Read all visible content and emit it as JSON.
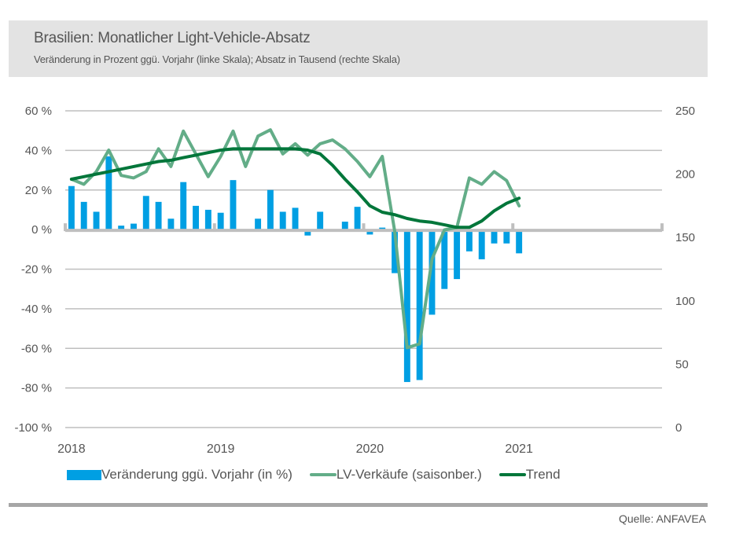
{
  "header": {
    "title": "Brasilien: Monatlicher Light-Vehicle-Absatz",
    "subtitle": "Veränderung in Prozent ggü. Vorjahr (linke Skala); Absatz in Tausend (rechte Skala)"
  },
  "colors": {
    "bars": "#009fe3",
    "lv_line": "#63ad88",
    "trend_line": "#00763a",
    "grid": "#bfbfbf",
    "zero_axis": "#bfbfbf",
    "text": "#555555",
    "title_bg": "#e3e3e3"
  },
  "legend": {
    "bars_label": "Veränderung ggü. Vorjahr (in %)",
    "lv_label": "LV-Verkäufe (saisonber.)",
    "trend_label": "Trend"
  },
  "footer": {
    "source": "Quelle: ANFAVEA"
  },
  "chart_data": {
    "type": "bar+line",
    "title": "Brasilien: Monatlicher Light-Vehicle-Absatz",
    "subtitle": "Veränderung in Prozent ggü. Vorjahr (linke Skala); Absatz in Tausend (rechte Skala)",
    "x_start": "2018-01",
    "x_end": "2021-12",
    "x_tick_labels": [
      "2018",
      "2019",
      "2020",
      "2021"
    ],
    "y_left": {
      "range": [
        -100,
        60
      ],
      "ticks": [
        60,
        40,
        20,
        0,
        -20,
        -40,
        -60,
        -80,
        -100
      ],
      "tick_labels": [
        "60 %",
        "40 %",
        "20 %",
        "0 %",
        "-20 %",
        "-40 %",
        "-60 %",
        "-80 %",
        "-100 %"
      ]
    },
    "y_right": {
      "range": [
        0,
        250
      ],
      "ticks": [
        250,
        200,
        150,
        100,
        50,
        0
      ],
      "tick_labels": [
        "250",
        "200",
        "150",
        "100",
        "50",
        "0"
      ]
    },
    "grid": true,
    "legend_position": "bottom",
    "months": [
      "2018-01",
      "2018-02",
      "2018-03",
      "2018-04",
      "2018-05",
      "2018-06",
      "2018-07",
      "2018-08",
      "2018-09",
      "2018-10",
      "2018-11",
      "2018-12",
      "2019-01",
      "2019-02",
      "2019-03",
      "2019-04",
      "2019-05",
      "2019-06",
      "2019-07",
      "2019-08",
      "2019-09",
      "2019-10",
      "2019-11",
      "2019-12",
      "2020-01",
      "2020-02",
      "2020-03",
      "2020-04",
      "2020-05",
      "2020-06",
      "2020-07",
      "2020-08",
      "2020-09",
      "2020-10",
      "2020-11",
      "2020-12",
      "2021-01"
    ],
    "series": [
      {
        "name": "Veränderung ggü. Vorjahr (in %)",
        "type": "bar",
        "axis": "left",
        "values": [
          22,
          14,
          9,
          37,
          2,
          3,
          17,
          14,
          5.5,
          24,
          12,
          10,
          8.5,
          25,
          0,
          5.5,
          20,
          9,
          11,
          -3,
          9,
          0,
          4,
          11.5,
          -2.5,
          1,
          -22,
          -77,
          -76,
          -43,
          -30,
          -25,
          -11,
          -15,
          -7,
          -7,
          -12
        ]
      },
      {
        "name": "LV-Verkäufe (saisonber.)",
        "type": "line",
        "axis": "right",
        "values": [
          196,
          192,
          202,
          219,
          199,
          197,
          202,
          220,
          206,
          234,
          216,
          198,
          214,
          234,
          206,
          230,
          235,
          216,
          224,
          215,
          224,
          227,
          220,
          210,
          198,
          214,
          155,
          63,
          66,
          133,
          156,
          158,
          197,
          192,
          202,
          195,
          175
        ]
      },
      {
        "name": "Trend",
        "type": "line",
        "axis": "right",
        "values": [
          196,
          198,
          200,
          202,
          204,
          206,
          208,
          210,
          211,
          213,
          215,
          217,
          219,
          220,
          220,
          220,
          220,
          220,
          220,
          219,
          216,
          207,
          196,
          186,
          175,
          170,
          168,
          165,
          163,
          162,
          160,
          158,
          158,
          163,
          171,
          177,
          181
        ]
      }
    ]
  }
}
